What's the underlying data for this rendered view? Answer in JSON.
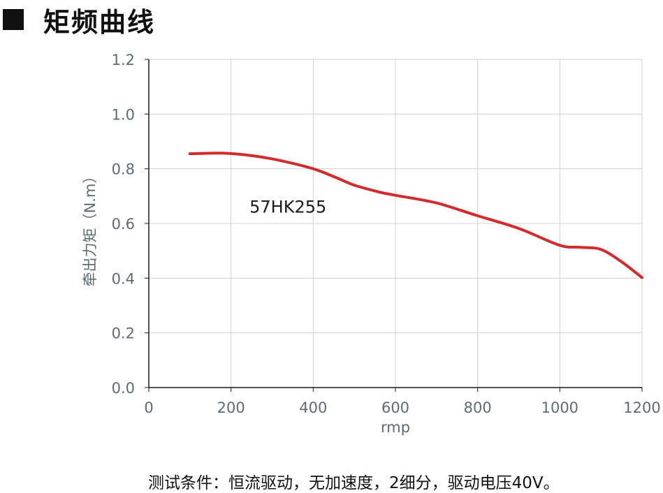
{
  "heading": {
    "title": "矩频曲线",
    "marker_icon": "black-square-icon"
  },
  "chart_data": {
    "type": "line",
    "xlabel": "rmp",
    "ylabel": "牵出力矩（N.m）",
    "xlim": [
      0,
      1200
    ],
    "ylim": [
      0,
      1.2
    ],
    "x_ticks": [
      0,
      200,
      400,
      600,
      800,
      1000,
      1200
    ],
    "x_tick_labels": [
      "0",
      "200",
      "400",
      "600",
      "800",
      "1000",
      "1200"
    ],
    "y_ticks": [
      0,
      0.2,
      0.4,
      0.6,
      0.8,
      1.0,
      1.2
    ],
    "y_tick_labels": [
      "0.0",
      "0.2",
      "0.4",
      "0.6",
      "0.8",
      "1.0",
      "1.2"
    ],
    "grid": true,
    "series": [
      {
        "name": "57HK255",
        "color": "#d42a2a",
        "x": [
          100,
          180,
          250,
          320,
          400,
          460,
          500,
          560,
          600,
          700,
          800,
          900,
          1000,
          1050,
          1100,
          1150,
          1200
        ],
        "y": [
          0.855,
          0.857,
          0.848,
          0.83,
          0.8,
          0.765,
          0.74,
          0.715,
          0.703,
          0.675,
          0.628,
          0.582,
          0.52,
          0.513,
          0.505,
          0.46,
          0.402
        ]
      }
    ]
  },
  "footnote": "测试条件：恒流驱动，无加速度，2细分，驱动电压40V。"
}
